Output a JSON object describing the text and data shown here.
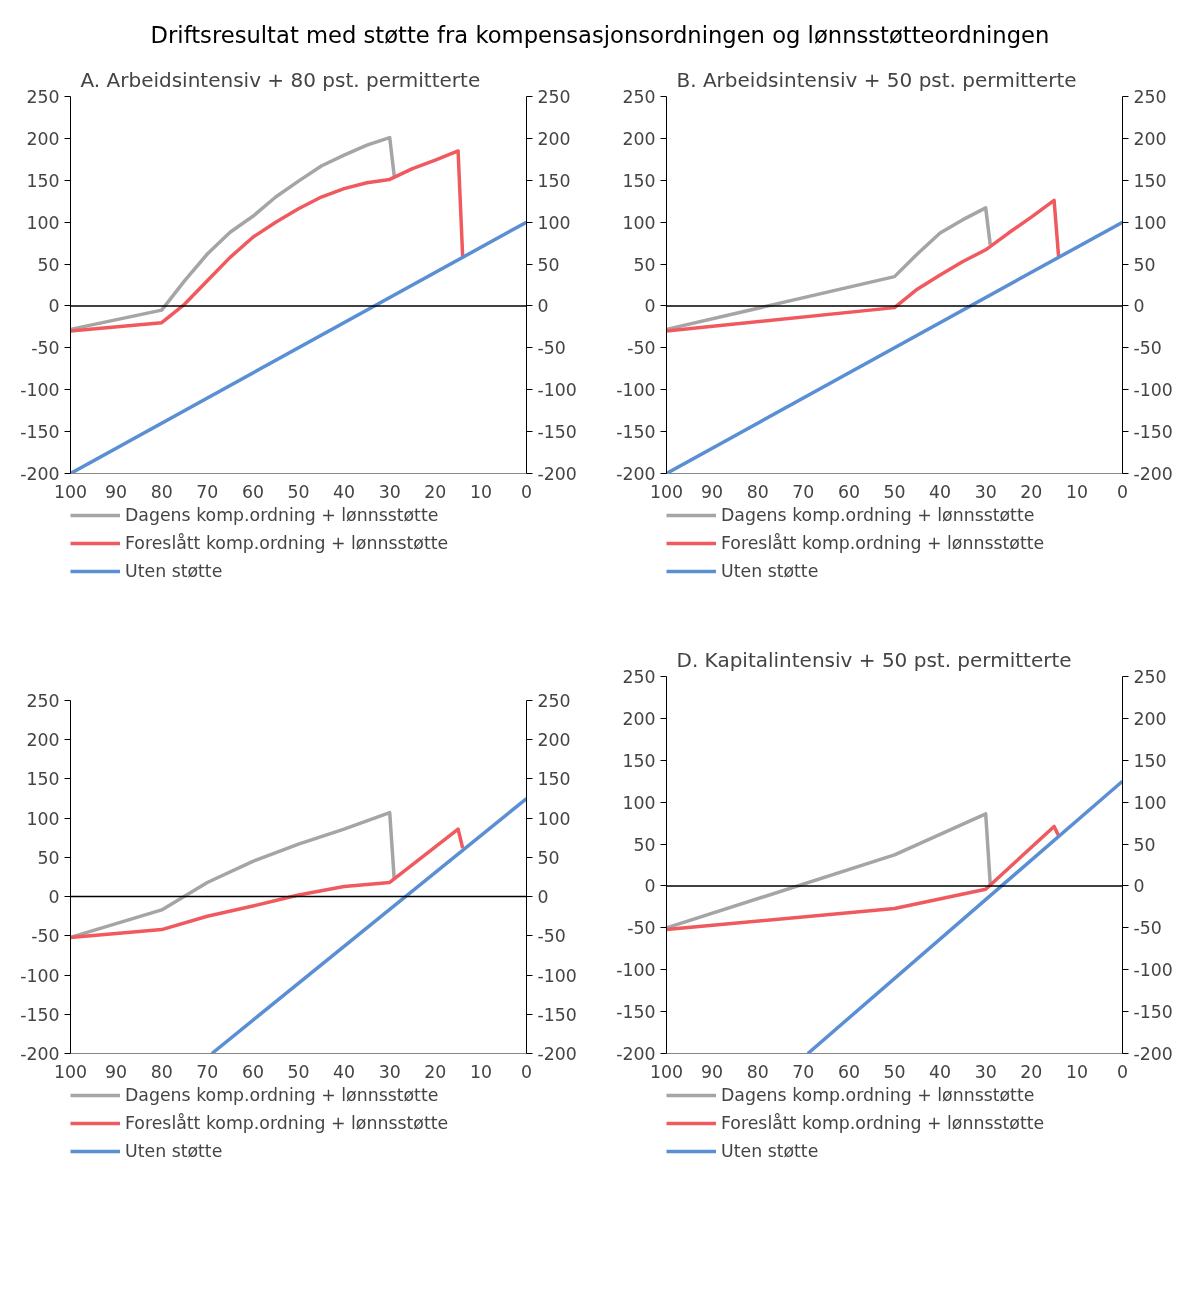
{
  "chart_data": [
    {
      "type": "line",
      "title": "A.  Arbeidsintensiv + 80 pst. permitterte",
      "ref_lines": [
        {
          "axis": "y",
          "value": 0
        }
      ],
      "annotations": [
        "Driftsresultat med støtte fra kompensasjonsordningen og lønnsstøtteordningen"
      ],
      "xlim": [
        100,
        0
      ],
      "xticks": [
        100,
        90,
        80,
        70,
        60,
        50,
        40,
        30,
        20,
        10,
        0
      ],
      "ylim": [
        -200,
        250
      ],
      "yticks": [
        -200,
        -150,
        -100,
        -50,
        0,
        50,
        100,
        150,
        200,
        250
      ],
      "y2lim": [
        -200,
        250
      ],
      "y2ticks": [
        -200,
        -150,
        -100,
        -50,
        0,
        50,
        100,
        150,
        200,
        250
      ],
      "legend": "bottom",
      "grid": false,
      "series": [
        {
          "name": "Dagens komp.ordning + lønnsstøtte",
          "color": "#a5a5a5",
          "x": [
            100,
            80,
            75,
            70,
            65,
            60,
            55,
            50,
            45,
            40,
            35,
            30,
            29
          ],
          "values": [
            -28,
            -5,
            30,
            62,
            88,
            107,
            130,
            149,
            167,
            180,
            192,
            201,
            155
          ]
        },
        {
          "name": "Foreslått komp.ordning + lønnsstøtte",
          "color": "#f05a5f",
          "x": [
            100,
            80,
            75,
            70,
            65,
            60,
            55,
            50,
            45,
            40,
            35,
            30,
            25,
            20,
            15,
            14
          ],
          "values": [
            -30,
            -20,
            2,
            30,
            58,
            82,
            100,
            116,
            130,
            140,
            147,
            151,
            164,
            174,
            185,
            59
          ]
        },
        {
          "name": "Uten støtte",
          "color": "#5b8fd4",
          "x": [
            100,
            0
          ],
          "values": [
            -200,
            100
          ]
        }
      ]
    },
    {
      "type": "line",
      "title": "B.  Arbeidsintensiv + 50 pst. permitterte",
      "ref_lines": [
        {
          "axis": "y",
          "value": 0
        }
      ],
      "xlim": [
        100,
        0
      ],
      "xticks": [
        100,
        90,
        80,
        70,
        60,
        50,
        40,
        30,
        20,
        10,
        0
      ],
      "ylim": [
        -200,
        250
      ],
      "yticks": [
        -200,
        -150,
        -100,
        -50,
        0,
        50,
        100,
        150,
        200,
        250
      ],
      "y2lim": [
        -200,
        250
      ],
      "y2ticks": [
        -200,
        -150,
        -100,
        -50,
        0,
        50,
        100,
        150,
        200,
        250
      ],
      "legend": "bottom",
      "grid": false,
      "series": [
        {
          "name": "Dagens komp.ordning + lønnsstøtte",
          "color": "#a5a5a5",
          "x": [
            100,
            50,
            45,
            40,
            35,
            30,
            29
          ],
          "values": [
            -28,
            35,
            62,
            87,
            103,
            117,
            73
          ]
        },
        {
          "name": "Foreslått komp.ordning + lønnsstøtte",
          "color": "#f05a5f",
          "x": [
            100,
            50,
            45,
            40,
            35,
            30,
            25,
            20,
            15,
            14
          ],
          "values": [
            -30,
            -2,
            20,
            37,
            53,
            67,
            87,
            106,
            126,
            58
          ]
        },
        {
          "name": "Uten støtte",
          "color": "#5b8fd4",
          "x": [
            100,
            0
          ],
          "values": [
            -200,
            100
          ]
        }
      ]
    },
    {
      "type": "line",
      "ref_lines": [
        {
          "axis": "y",
          "value": 0
        }
      ],
      "xlim": [
        100,
        0
      ],
      "xticks": [
        100,
        90,
        80,
        70,
        60,
        50,
        40,
        30,
        20,
        10,
        0
      ],
      "ylim": [
        -200,
        250
      ],
      "yticks": [
        -200,
        -150,
        -100,
        -50,
        0,
        50,
        100,
        150,
        200,
        250
      ],
      "y2lim": [
        -200,
        250
      ],
      "y2ticks": [
        -200,
        -150,
        -100,
        -50,
        0,
        50,
        100,
        150,
        200,
        250
      ],
      "legend": "bottom",
      "grid": false,
      "series": [
        {
          "name": "Dagens komp.ordning + lønnsstøtte",
          "color": "#a5a5a5",
          "x": [
            100,
            80,
            70,
            60,
            50,
            40,
            30,
            29
          ],
          "values": [
            -52,
            -17,
            18,
            45,
            67,
            86,
            107,
            22
          ]
        },
        {
          "name": "Foreslått komp.ordning + lønnsstøtte",
          "color": "#f05a5f",
          "x": [
            100,
            80,
            70,
            60,
            50,
            40,
            30,
            15,
            14
          ],
          "values": [
            -52,
            -42,
            -25,
            -12,
            2,
            13,
            18,
            86,
            62
          ]
        },
        {
          "name": "Uten støtte",
          "color": "#5b8fd4",
          "x": [
            69,
            0
          ],
          "values": [
            -200,
            125
          ]
        }
      ]
    },
    {
      "type": "line",
      "title": "D.   Kapitalintensiv + 50 pst. permitterte",
      "ref_lines": [
        {
          "axis": "y",
          "value": 0
        }
      ],
      "xlim": [
        100,
        0
      ],
      "xticks": [
        100,
        90,
        80,
        70,
        60,
        50,
        40,
        30,
        20,
        10,
        0
      ],
      "ylim": [
        -200,
        250
      ],
      "yticks": [
        -200,
        -150,
        -100,
        -50,
        0,
        50,
        100,
        150,
        200,
        250
      ],
      "y2lim": [
        -200,
        250
      ],
      "y2ticks": [
        -200,
        -150,
        -100,
        -50,
        0,
        50,
        100,
        150,
        200,
        250
      ],
      "legend": "bottom",
      "grid": false,
      "series": [
        {
          "name": "Dagens komp.ordning + lønnsstøtte",
          "color": "#a5a5a5",
          "x": [
            100,
            50,
            30,
            29
          ],
          "values": [
            -50,
            37,
            86,
            2
          ]
        },
        {
          "name": "Foreslått komp.ordning + lønnsstøtte",
          "color": "#f05a5f",
          "x": [
            100,
            50,
            30,
            15,
            14
          ],
          "values": [
            -52,
            -27,
            -4,
            71,
            60
          ]
        },
        {
          "name": "Uten støtte",
          "color": "#5b8fd4",
          "x": [
            69,
            0
          ],
          "values": [
            -200,
            125
          ]
        }
      ]
    }
  ]
}
